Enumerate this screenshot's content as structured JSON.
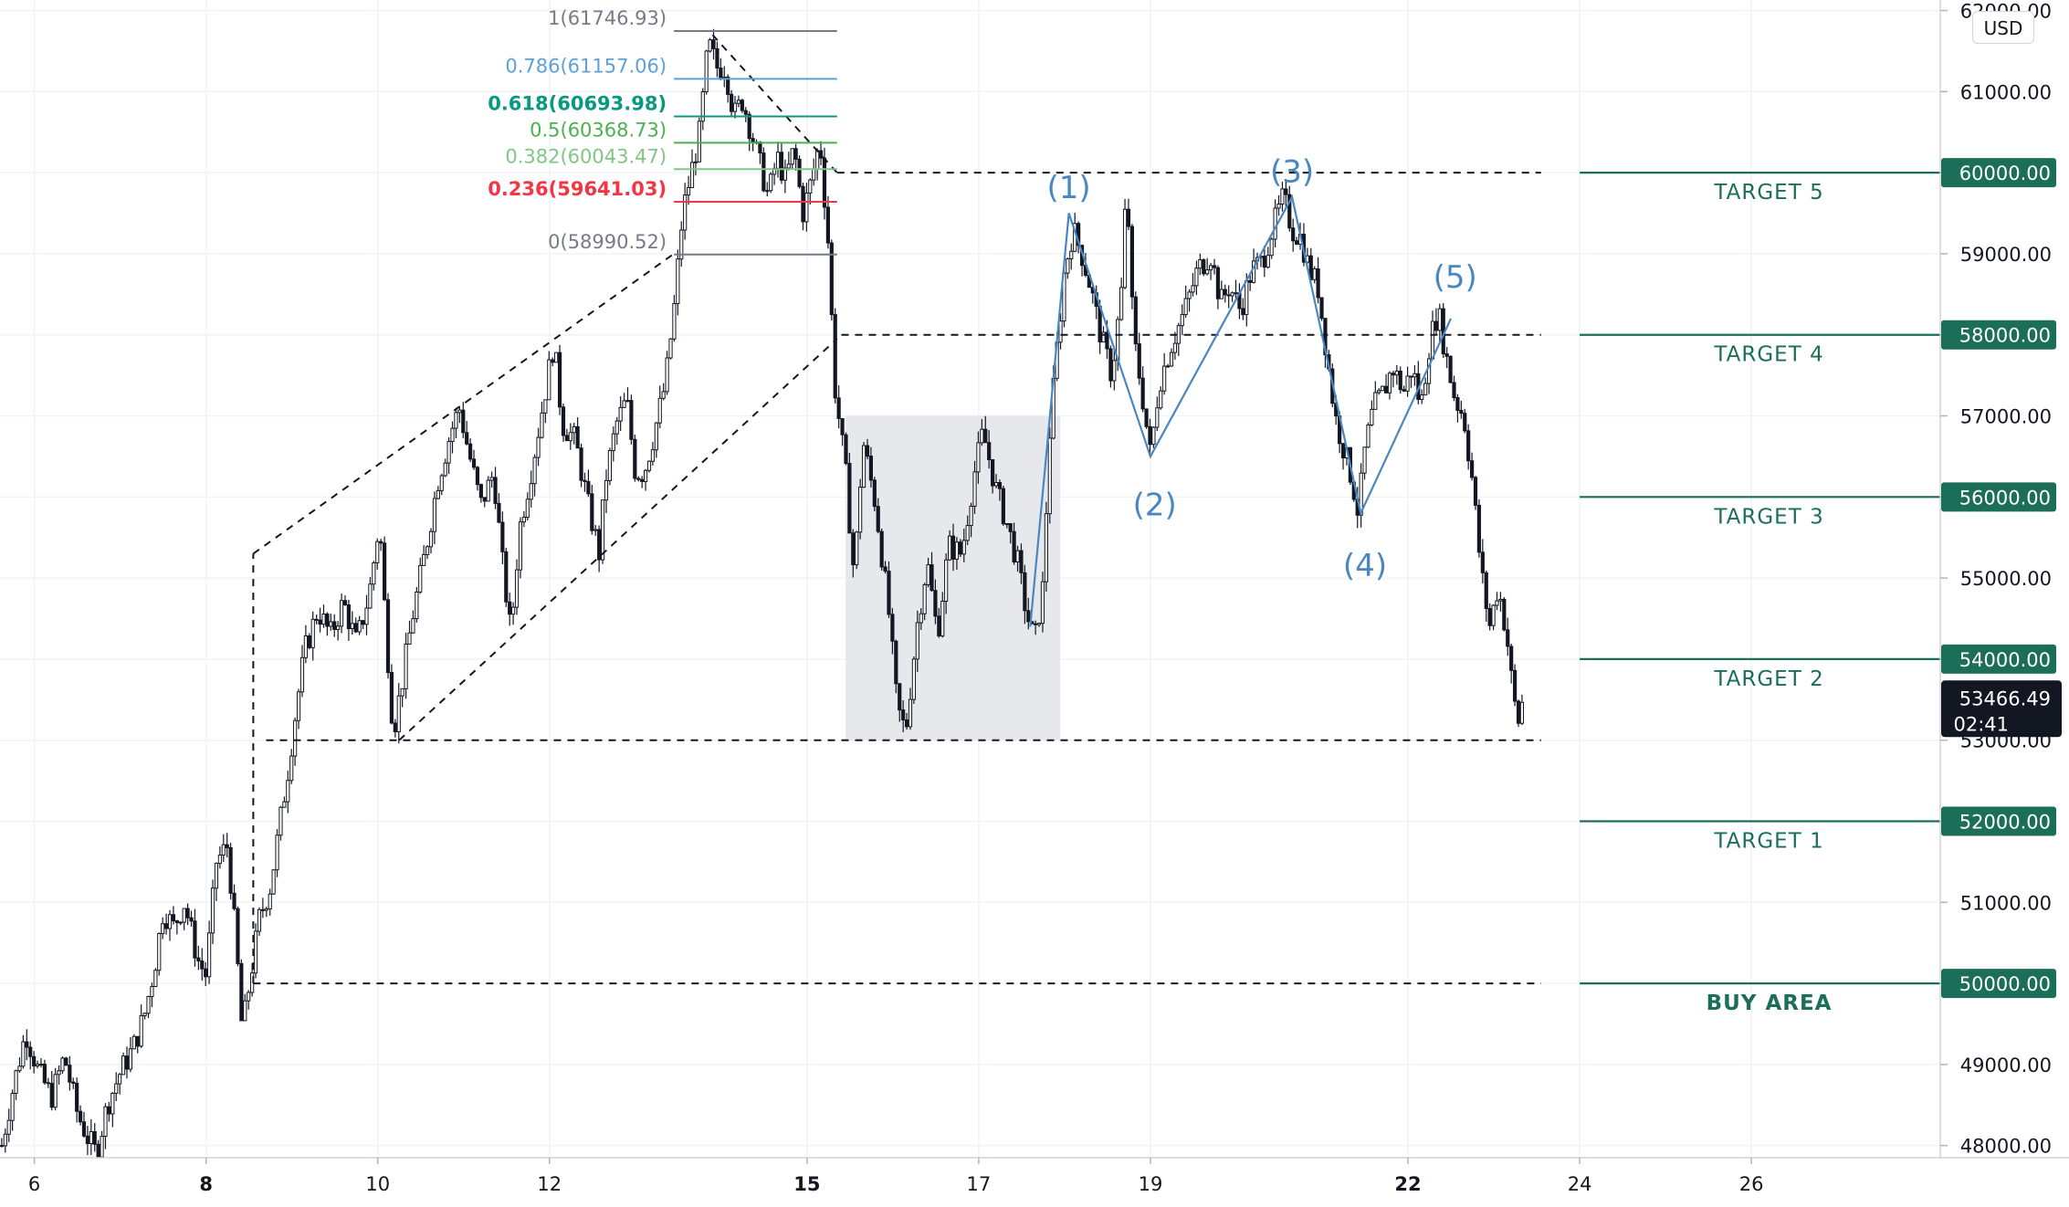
{
  "currency": "USD",
  "colors": {
    "target_line": "#1b6e57",
    "wave": "#4a86c0",
    "candle": "#131722",
    "box_fill": "#e3e4e7",
    "label_bg": "#1b6e57",
    "current_bg": "#131722"
  },
  "chart_data": {
    "type": "candlestick",
    "x_axis": {
      "unit": "day (August)",
      "range": [
        5.6,
        28.2
      ],
      "ticks": [
        {
          "value": 6,
          "label": "6",
          "bold": false
        },
        {
          "value": 8,
          "label": "8",
          "bold": true
        },
        {
          "value": 10,
          "label": "10",
          "bold": false
        },
        {
          "value": 12,
          "label": "12",
          "bold": false
        },
        {
          "value": 15,
          "label": "15",
          "bold": true
        },
        {
          "value": 17,
          "label": "17",
          "bold": false
        },
        {
          "value": 19,
          "label": "19",
          "bold": false
        },
        {
          "value": 22,
          "label": "22",
          "bold": true
        },
        {
          "value": 24,
          "label": "24",
          "bold": false
        },
        {
          "value": 26,
          "label": "26",
          "bold": false
        }
      ]
    },
    "y_axis": {
      "range": [
        47850,
        62130
      ],
      "ticks": [
        {
          "value": 62000,
          "label": "62000.00"
        },
        {
          "value": 61000,
          "label": "61000.00"
        },
        {
          "value": 60000,
          "label": "60000.00"
        },
        {
          "value": 59000,
          "label": "59000.00"
        },
        {
          "value": 58000,
          "label": "58000.00"
        },
        {
          "value": 57000,
          "label": "57000.00"
        },
        {
          "value": 56000,
          "label": "56000.00"
        },
        {
          "value": 55000,
          "label": "55000.00"
        },
        {
          "value": 54000,
          "label": "54000.00"
        },
        {
          "value": 53000,
          "label": "53000.00"
        },
        {
          "value": 52000,
          "label": "52000.00"
        },
        {
          "value": 51000,
          "label": "51000.00"
        },
        {
          "value": 50000,
          "label": "50000.00"
        },
        {
          "value": 49000,
          "label": "49000.00"
        },
        {
          "value": 48000,
          "label": "48000.00"
        }
      ]
    },
    "price_path": [
      [
        5.62,
        48000
      ],
      [
        5.75,
        48700
      ],
      [
        5.9,
        49400
      ],
      [
        6.05,
        48900
      ],
      [
        6.2,
        48600
      ],
      [
        6.35,
        49100
      ],
      [
        6.5,
        48400
      ],
      [
        6.62,
        48100
      ],
      [
        6.72,
        47900
      ],
      [
        6.85,
        48500
      ],
      [
        7.0,
        48900
      ],
      [
        7.15,
        49200
      ],
      [
        7.28,
        49600
      ],
      [
        7.4,
        50200
      ],
      [
        7.5,
        50900
      ],
      [
        7.62,
        50700
      ],
      [
        7.75,
        51000
      ],
      [
        7.9,
        50300
      ],
      [
        8.0,
        50100
      ],
      [
        8.12,
        51500
      ],
      [
        8.25,
        51700
      ],
      [
        8.35,
        50500
      ],
      [
        8.42,
        49400
      ],
      [
        8.52,
        50100
      ],
      [
        8.62,
        50800
      ],
      [
        8.75,
        51200
      ],
      [
        8.85,
        51900
      ],
      [
        8.95,
        52600
      ],
      [
        9.05,
        53400
      ],
      [
        9.15,
        54100
      ],
      [
        9.3,
        54600
      ],
      [
        9.45,
        54300
      ],
      [
        9.6,
        54700
      ],
      [
        9.75,
        54200
      ],
      [
        9.9,
        54800
      ],
      [
        10.02,
        55700
      ],
      [
        10.1,
        54300
      ],
      [
        10.18,
        53100
      ],
      [
        10.28,
        53700
      ],
      [
        10.4,
        54500
      ],
      [
        10.55,
        55300
      ],
      [
        10.7,
        56200
      ],
      [
        10.85,
        56800
      ],
      [
        10.95,
        57100
      ],
      [
        11.05,
        56600
      ],
      [
        11.2,
        55900
      ],
      [
        11.35,
        56300
      ],
      [
        11.45,
        55200
      ],
      [
        11.55,
        54300
      ],
      [
        11.65,
        55600
      ],
      [
        11.8,
        56400
      ],
      [
        11.95,
        57300
      ],
      [
        12.05,
        57900
      ],
      [
        12.15,
        56900
      ],
      [
        12.3,
        56700
      ],
      [
        12.45,
        55900
      ],
      [
        12.58,
        55300
      ],
      [
        12.65,
        56200
      ],
      [
        12.78,
        56900
      ],
      [
        12.9,
        57200
      ],
      [
        13.0,
        56300
      ],
      [
        13.1,
        56300
      ],
      [
        13.2,
        56700
      ],
      [
        13.35,
        57400
      ],
      [
        13.45,
        58300
      ],
      [
        13.55,
        59500
      ],
      [
        13.65,
        60000
      ],
      [
        13.75,
        60500
      ],
      [
        13.85,
        61600
      ],
      [
        13.95,
        61300
      ],
      [
        14.05,
        61300
      ],
      [
        14.15,
        60700
      ],
      [
        14.25,
        60900
      ],
      [
        14.35,
        60500
      ],
      [
        14.45,
        60100
      ],
      [
        14.55,
        59700
      ],
      [
        14.65,
        60200
      ],
      [
        14.75,
        59900
      ],
      [
        14.85,
        60300
      ],
      [
        14.95,
        59500
      ],
      [
        15.05,
        59900
      ],
      [
        15.15,
        60400
      ],
      [
        15.25,
        59100
      ],
      [
        15.32,
        57400
      ],
      [
        15.45,
        56300
      ],
      [
        15.55,
        55000
      ],
      [
        15.65,
        56700
      ],
      [
        15.8,
        55900
      ],
      [
        15.95,
        54600
      ],
      [
        16.05,
        53400
      ],
      [
        16.15,
        53100
      ],
      [
        16.28,
        54400
      ],
      [
        16.4,
        55200
      ],
      [
        16.52,
        54300
      ],
      [
        16.65,
        55400
      ],
      [
        16.8,
        55300
      ],
      [
        16.95,
        56300
      ],
      [
        17.05,
        56800
      ],
      [
        17.2,
        56100
      ],
      [
        17.32,
        55700
      ],
      [
        17.45,
        55200
      ],
      [
        17.55,
        54600
      ],
      [
        17.65,
        54200
      ],
      [
        17.75,
        54900
      ],
      [
        17.82,
        56700
      ],
      [
        17.9,
        57700
      ],
      [
        18.0,
        58800
      ],
      [
        18.1,
        59300
      ],
      [
        18.2,
        59000
      ],
      [
        18.3,
        58600
      ],
      [
        18.42,
        58000
      ],
      [
        18.55,
        57500
      ],
      [
        18.68,
        58700
      ],
      [
        18.72,
        60000
      ],
      [
        18.8,
        58000
      ],
      [
        18.9,
        57300
      ],
      [
        19.0,
        56500
      ],
      [
        19.1,
        57400
      ],
      [
        19.25,
        57900
      ],
      [
        19.4,
        58300
      ],
      [
        19.55,
        58800
      ],
      [
        19.7,
        59000
      ],
      [
        19.82,
        58400
      ],
      [
        19.92,
        58600
      ],
      [
        20.05,
        58300
      ],
      [
        20.18,
        58800
      ],
      [
        20.3,
        58900
      ],
      [
        20.42,
        59300
      ],
      [
        20.55,
        59700
      ],
      [
        20.65,
        59300
      ],
      [
        20.75,
        59200
      ],
      [
        20.85,
        58800
      ],
      [
        20.95,
        58600
      ],
      [
        21.05,
        57800
      ],
      [
        21.15,
        57000
      ],
      [
        21.25,
        56600
      ],
      [
        21.35,
        56200
      ],
      [
        21.42,
        55800
      ],
      [
        21.5,
        56600
      ],
      [
        21.6,
        57100
      ],
      [
        21.72,
        57300
      ],
      [
        21.82,
        57600
      ],
      [
        21.95,
        57300
      ],
      [
        22.05,
        57600
      ],
      [
        22.15,
        57100
      ],
      [
        22.25,
        57900
      ],
      [
        22.35,
        58300
      ],
      [
        22.45,
        57700
      ],
      [
        22.55,
        57200
      ],
      [
        22.65,
        57000
      ],
      [
        22.75,
        56200
      ],
      [
        22.85,
        55100
      ],
      [
        22.95,
        54400
      ],
      [
        23.05,
        54900
      ],
      [
        23.15,
        54300
      ],
      [
        23.22,
        53600
      ],
      [
        23.28,
        53200
      ],
      [
        23.33,
        53466
      ]
    ],
    "price_noise": 300,
    "current_price": {
      "value": 53466.49,
      "label": "53466.49",
      "countdown": "02:41"
    },
    "fibonacci": {
      "x_range": [
        13.45,
        15.35
      ],
      "levels": [
        {
          "label": "1(61746.93)",
          "value": 61746.93,
          "color": "#787b86"
        },
        {
          "label": "0.786(61157.06)",
          "value": 61157.06,
          "color": "#5da1d8"
        },
        {
          "label": "0.618(60693.98)",
          "value": 60693.98,
          "color": "#089981"
        },
        {
          "label": "0.5(60368.73)",
          "value": 60368.73,
          "color": "#4caf50"
        },
        {
          "label": "0.382(60043.47)",
          "value": 60043.47,
          "color": "#81c784"
        },
        {
          "label": "0.236(59641.03)",
          "value": 59641.03,
          "color": "#f23645"
        },
        {
          "label": "0(58990.52)",
          "value": 58990.52,
          "color": "#787b86"
        }
      ]
    },
    "targets": [
      {
        "label": "TARGET 5",
        "value": 60000,
        "price_label": "60000.00"
      },
      {
        "label": "TARGET 4",
        "value": 58000,
        "price_label": "58000.00"
      },
      {
        "label": "TARGET 3",
        "value": 56000,
        "price_label": "56000.00"
      },
      {
        "label": "TARGET 2",
        "value": 54000,
        "price_label": "54000.00"
      },
      {
        "label": "TARGET 1",
        "value": 52000,
        "price_label": "52000.00"
      },
      {
        "label": "BUY AREA",
        "value": 50000,
        "price_label": "50000.00"
      }
    ],
    "target_line_x_range": [
      24.0,
      28.2
    ],
    "horizontal_dashed_lines": [
      {
        "value": 60000,
        "x_range": [
          15.35,
          23.55
        ]
      },
      {
        "value": 58000,
        "x_range": [
          15.4,
          23.55
        ]
      },
      {
        "value": 53000,
        "x_range": [
          8.7,
          23.55
        ]
      },
      {
        "value": 50000,
        "x_range": [
          8.55,
          23.55
        ]
      }
    ],
    "vertical_dashed_line": {
      "x": 8.55,
      "y_range": [
        50000,
        55300
      ]
    },
    "channel": [
      {
        "from": [
          8.55,
          55300
        ],
        "to": [
          13.45,
          59000
        ]
      },
      {
        "from": [
          10.25,
          53000
        ],
        "to": [
          15.35,
          57950
        ]
      }
    ],
    "descending_line": {
      "from": [
        13.9,
        61700
      ],
      "to": [
        15.35,
        60000
      ]
    },
    "consolidation_box": {
      "x_range": [
        15.45,
        17.95
      ],
      "y_range": [
        53000,
        57000
      ]
    },
    "elliott_waves": {
      "path": [
        [
          17.6,
          54400
        ],
        [
          18.05,
          59500
        ],
        [
          19.0,
          56500
        ],
        [
          20.65,
          59700
        ],
        [
          21.45,
          55800
        ],
        [
          22.5,
          58200
        ]
      ],
      "labels": [
        {
          "label": "(1)",
          "x": 18.05,
          "y": 59550,
          "pos": "above"
        },
        {
          "label": "(2)",
          "x": 19.05,
          "y": 56200,
          "pos": "below"
        },
        {
          "label": "(3)",
          "x": 20.65,
          "y": 59750,
          "pos": "above"
        },
        {
          "label": "(4)",
          "x": 21.5,
          "y": 55450,
          "pos": "below"
        },
        {
          "label": "(5)",
          "x": 22.55,
          "y": 58450,
          "pos": "above"
        }
      ]
    }
  }
}
